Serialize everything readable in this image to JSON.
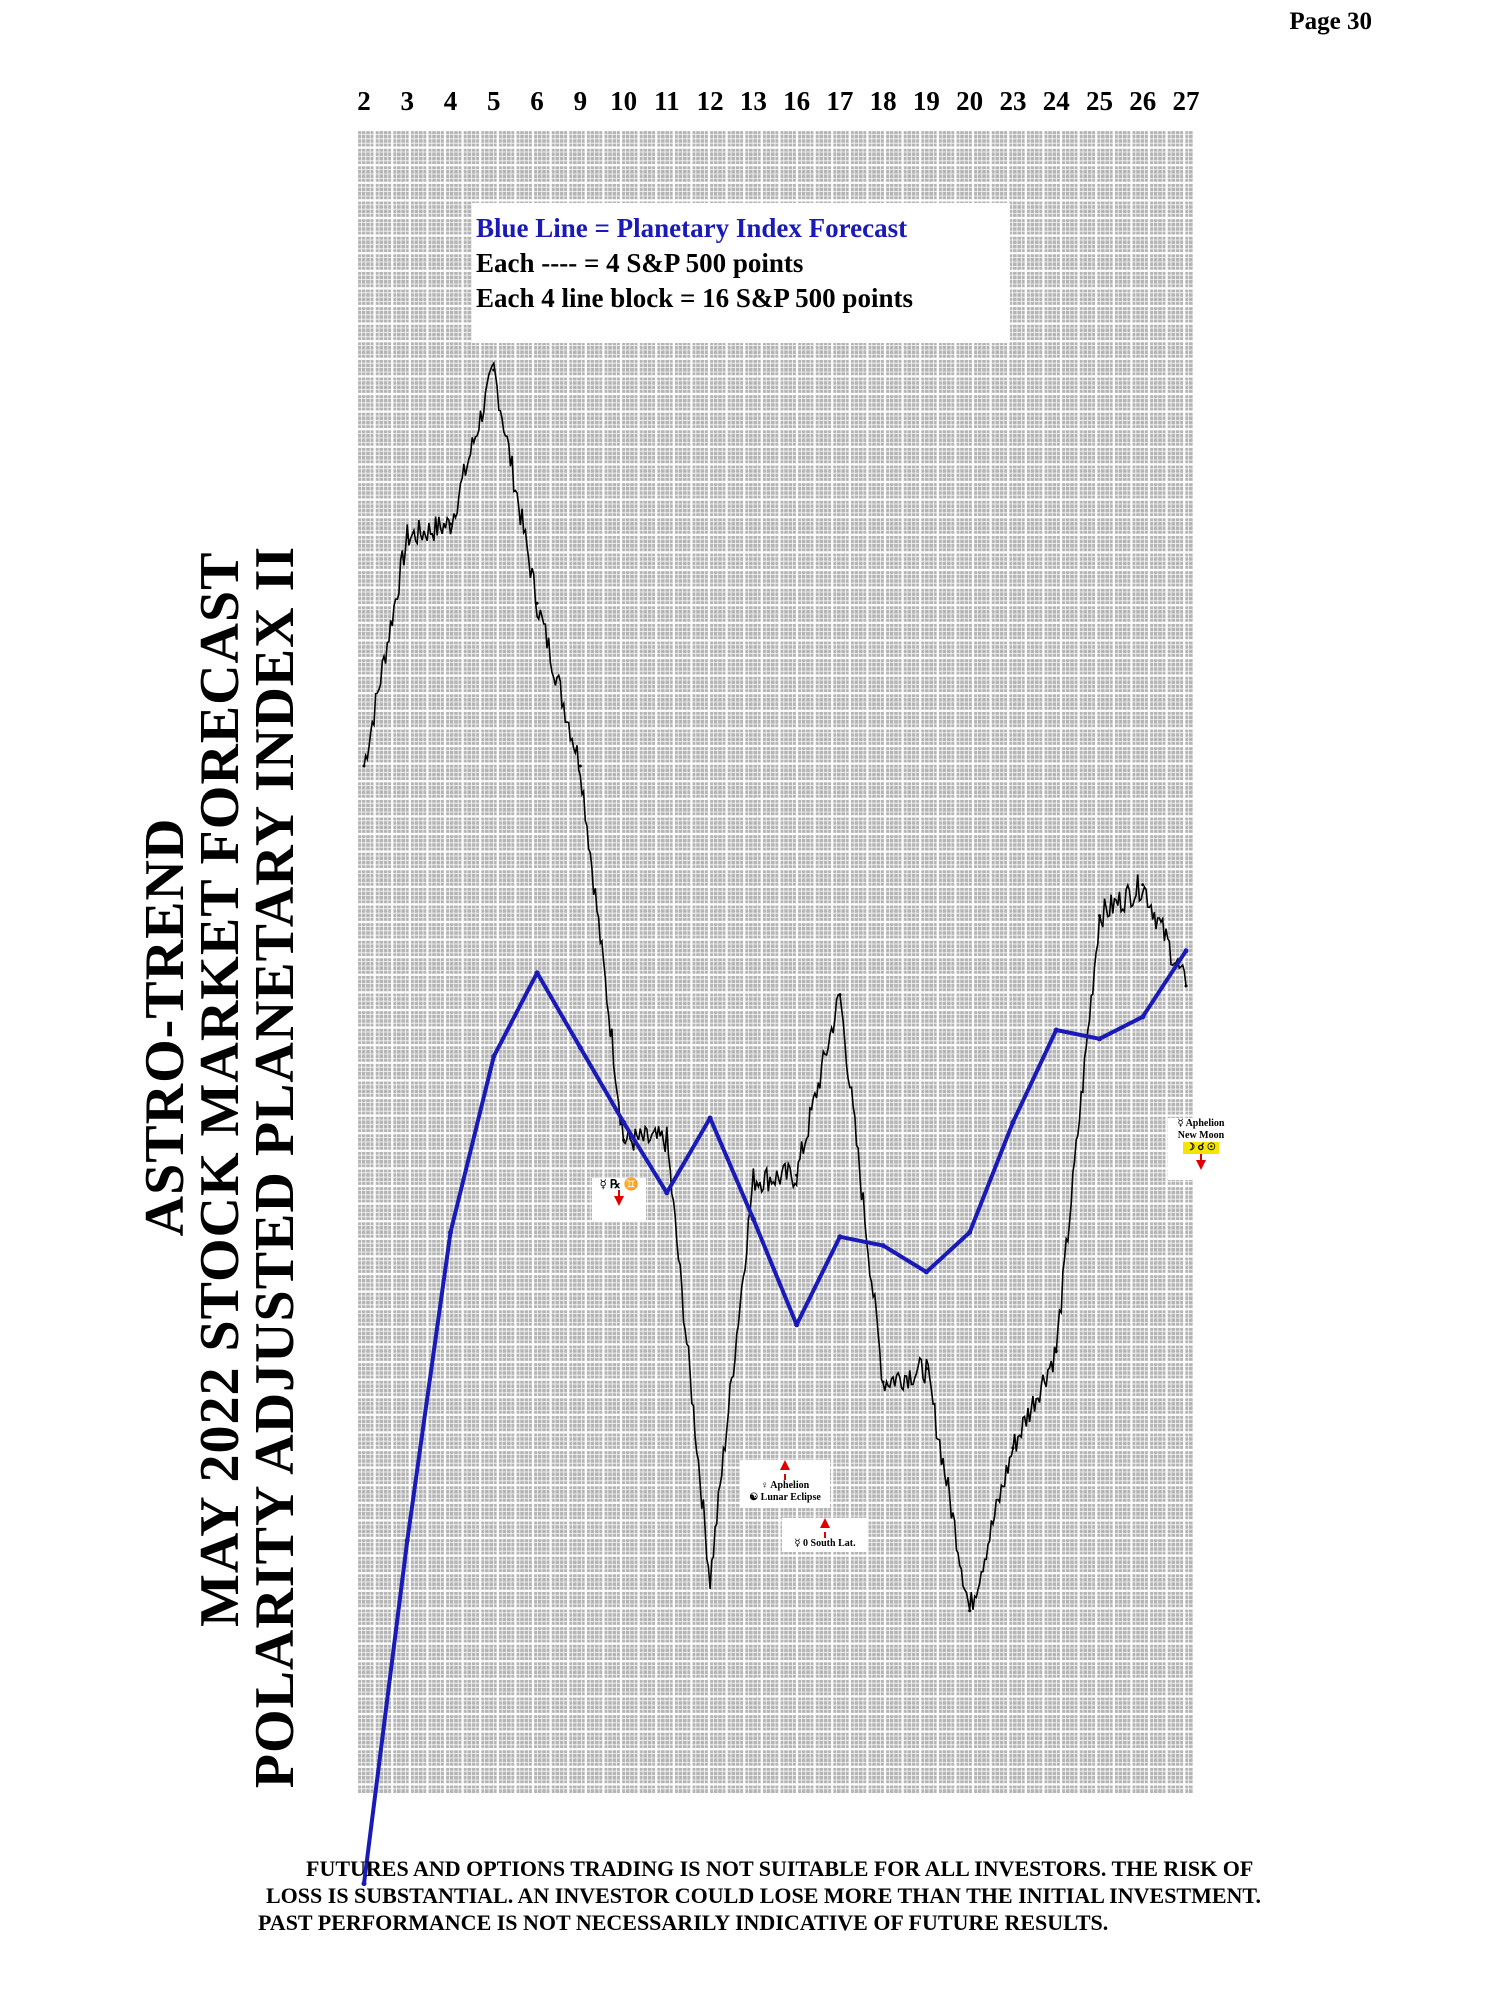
{
  "page": {
    "number_label": "Page  30"
  },
  "titles": {
    "line1": "ASTRO-TREND",
    "line2": "MAY 2022  STOCK MARKET FORECAST",
    "line3": "POLARITY ADJUSTED PLANETARY INDEX II"
  },
  "legend": {
    "line1": "Blue Line = Planetary Index Forecast",
    "line2": "Each ---- =   4 S&P 500 points",
    "line3": "Each 4 line block =  16  S&P 500 points",
    "blue_color": "#1a1ab8"
  },
  "annotations": {
    "mercury_retro": "☿ ℞ ♊",
    "venus_aphelion": "♀ Aphelion",
    "lunar_eclipse": "☯ Lunar Eclipse",
    "mercury_lat": "☿ 0 South Lat.",
    "mercury_aphelion": "☿ Aphelion",
    "new_moon": "New Moon",
    "new_moon_glyphs": "☽ ☌ ☉"
  },
  "disclaimer": {
    "line1": "FUTURES AND OPTIONS TRADING IS NOT SUITABLE FOR ALL INVESTORS.  THE RISK OF",
    "line2": "LOSS IS SUBSTANTIAL.  AN INVESTOR COULD LOSE MORE THAN THE INITIAL INVESTMENT.",
    "line3": "PAST PERFORMANCE IS NOT NECESSARILY INDICATIVE OF FUTURE RESULTS."
  },
  "chart_data": {
    "type": "line",
    "categories": [
      "2",
      "3",
      "4",
      "5",
      "6",
      "9",
      "10",
      "11",
      "12",
      "13",
      "16",
      "17",
      "18",
      "19",
      "20",
      "23",
      "24",
      "25",
      "26",
      "27"
    ],
    "colors": {
      "forecast": "#1a1ab8",
      "actual": "#000000",
      "grid_bg": "#b5b5b5",
      "grid_line": "#ffffff"
    },
    "grid": true,
    "series": [
      {
        "key": "forecast",
        "values_relative_points": [
          -44,
          34,
          104,
          144,
          163,
          146,
          129,
          113,
          130,
          107,
          83,
          103,
          101,
          95,
          104,
          129,
          150,
          148,
          153,
          168
        ]
      },
      {
        "key": "actual",
        "values_relative_points": [
          210,
          262,
          265,
          300,
          247,
          210,
          125,
          125,
          25,
          116,
          117,
          158,
          70,
          73,
          18,
          55,
          77,
          176,
          183,
          160
        ]
      }
    ]
  }
}
